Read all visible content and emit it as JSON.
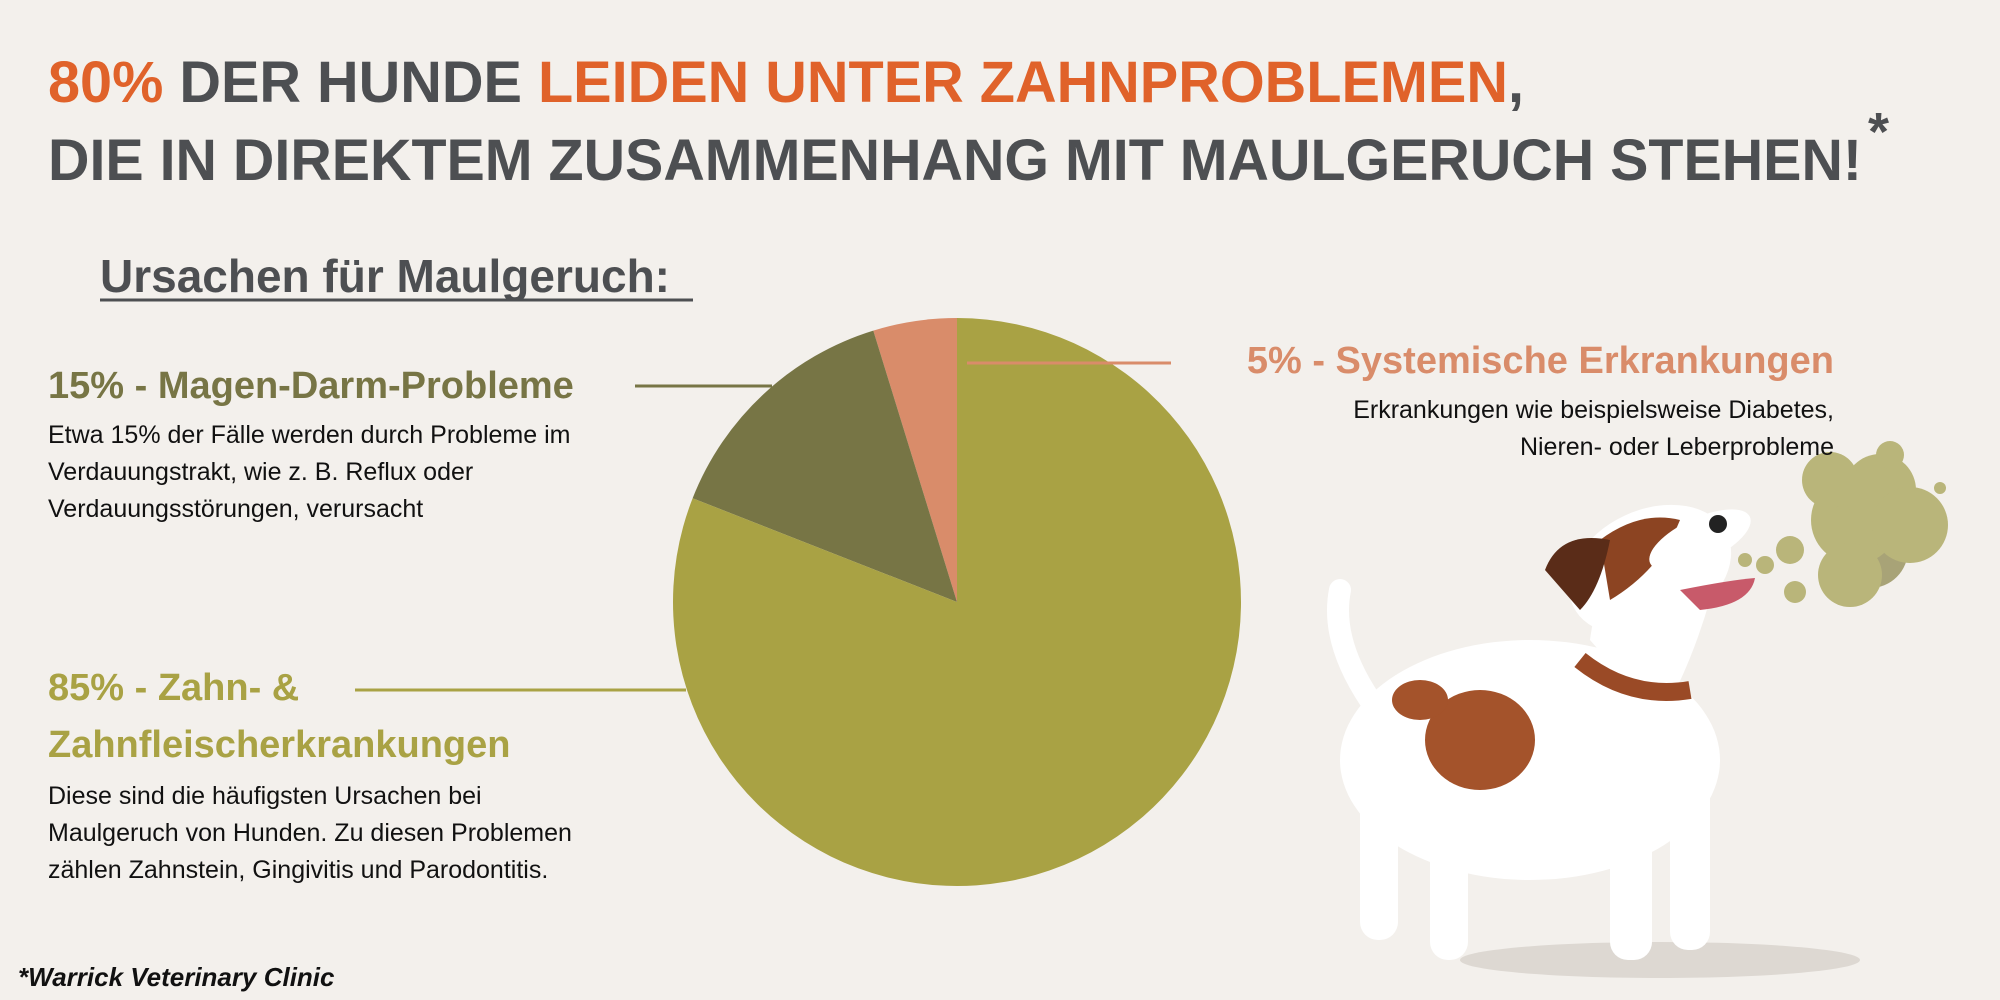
{
  "header": {
    "line1": [
      "80%",
      " DER HUNDE ",
      "LEIDEN UNTER ZAHNPROBLEMEN",
      ","
    ],
    "line2": "DIE IN DIREKTEM ZUSAMMENHANG MIT MAULGERUCH STEHEN!",
    "mark": "*"
  },
  "chart_data": {
    "type": "pie",
    "title": "Ursachen für Maulgeruch:",
    "values": [
      5,
      15,
      85
    ],
    "value_labels": [
      "5% - Systemische Erkrankungen",
      "15% - Magen-Darm-Probleme",
      "85% - Zahn- & Zahnfleischerkrankungen"
    ],
    "colors": [
      "#d98c6a",
      "#777545",
      "#a9a244"
    ],
    "annotations": [
      [
        "Erkrankungen wie beispielsweise Diabetes,",
        "Nieren- oder Leberprobleme"
      ],
      [
        "Etwa 15% der Fälle werden durch Probleme im",
        "Verdauungstrakt, wie z. B. Reflux oder",
        "Verdauungsstörungen, verursacht"
      ],
      [
        "Diese sind die häufigsten Ursachen bei",
        "Maulgeruch von Hunden. Zu diesen Problemen",
        "zählen Zahnstein, Gingivitis und Parodontitis."
      ]
    ]
  },
  "footnote": "*Warrick Veterinary Clinic"
}
